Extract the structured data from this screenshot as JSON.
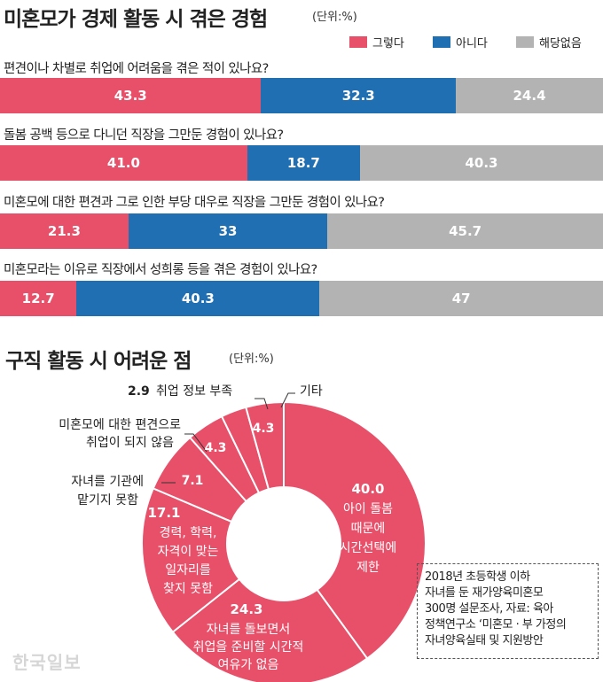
{
  "header": {
    "title": "미혼모가 경제 활동 시 겪은 경험",
    "unit": "(단위:%)"
  },
  "legend": [
    {
      "label": "그렇다",
      "color": "#e8506a"
    },
    {
      "label": "아니다",
      "color": "#1f6fb2"
    },
    {
      "label": "해당없음",
      "color": "#b3b3b3"
    }
  ],
  "section2": {
    "title": "구직 활동 시 어려운 점",
    "unit": "(단위:%)"
  },
  "chart_data": [
    {
      "type": "bar",
      "stacked": true,
      "orientation": "horizontal",
      "title": "미혼모가 경제 활동 시 겪은 경험",
      "unit": "%",
      "categories": [
        "편견이나 차별로 취업에 어려움을 겪은 적이 있나요?",
        "돌봄 공백 등으로 다니던 직장을 그만둔 경험이 있나요?",
        "미혼모에 대한 편견과 그로 인한 부당 대우로 직장을 그만둔 경험이 있나요?",
        "미혼모라는 이유로 직장에서 성희롱 등을 겪은 경험이 있나요?"
      ],
      "series": [
        {
          "name": "그렇다",
          "values": [
            43.3,
            41.0,
            21.3,
            12.7
          ],
          "labels": [
            "43.3",
            "41.0",
            "21.3",
            "12.7"
          ]
        },
        {
          "name": "아니다",
          "values": [
            32.3,
            18.7,
            33,
            40.3
          ],
          "labels": [
            "32.3",
            "18.7",
            "33",
            "40.3"
          ]
        },
        {
          "name": "해당없음",
          "values": [
            24.4,
            40.3,
            45.7,
            47
          ],
          "labels": [
            "24.4",
            "40.3",
            "45.7",
            "47"
          ]
        }
      ]
    },
    {
      "type": "pie",
      "donut": true,
      "title": "구직 활동 시 어려운 점",
      "unit": "%",
      "slices": [
        {
          "label": "아이 돌봄 때문에 시간선택에 제한",
          "value": 40.0,
          "value_label": "40.0"
        },
        {
          "label": "자녀를 돌보면서 취업을 준비할 시간적 여유가 없음",
          "value": 24.3,
          "value_label": "24.3"
        },
        {
          "label": "경력, 학력, 자격이 맞는 일자리를 찾지 못함",
          "value": 17.1,
          "value_label": "17.1"
        },
        {
          "label": "자녀를 기관에 맡기지 못함",
          "value": 7.1,
          "value_label": "7.1"
        },
        {
          "label": "미혼모에 대한 편견으로 취업이 되지 않음",
          "value": 4.3,
          "value_label": "4.3"
        },
        {
          "label": "취업 정보 부족",
          "value": 2.9,
          "value_label": "2.9"
        },
        {
          "label": "기타",
          "value": 4.3,
          "value_label": "4.3"
        }
      ],
      "inside_text": {
        "s40": [
          "아이 돌봄",
          "때문에",
          "시간선택에",
          "제한"
        ],
        "s24": [
          "자녀를 돌보면서",
          "취업을 준비할 시간적",
          "여유가 없음"
        ],
        "s17": [
          "경력, 학력,",
          "자격이 맞는",
          "일자리를",
          "찾지 못함"
        ]
      },
      "callouts": {
        "info": "취업 정보 부족",
        "etc": "기타",
        "bias": [
          "미혼모에 대한 편견으로",
          "취업이 되지 않음"
        ],
        "care": [
          "자녀를 기관에",
          "맡기지 못함"
        ]
      },
      "color": "#e8506a"
    }
  ],
  "note": {
    "lines": [
      "2018년 초등학생 이하",
      "자녀를 둔 재가양육미혼모",
      "300명 설문조사, 자료: 육아",
      "정책연구소 ‘미혼모 · 부 가정의",
      "자녀양육실태 및 지원방안"
    ]
  },
  "watermark": "한국일보"
}
